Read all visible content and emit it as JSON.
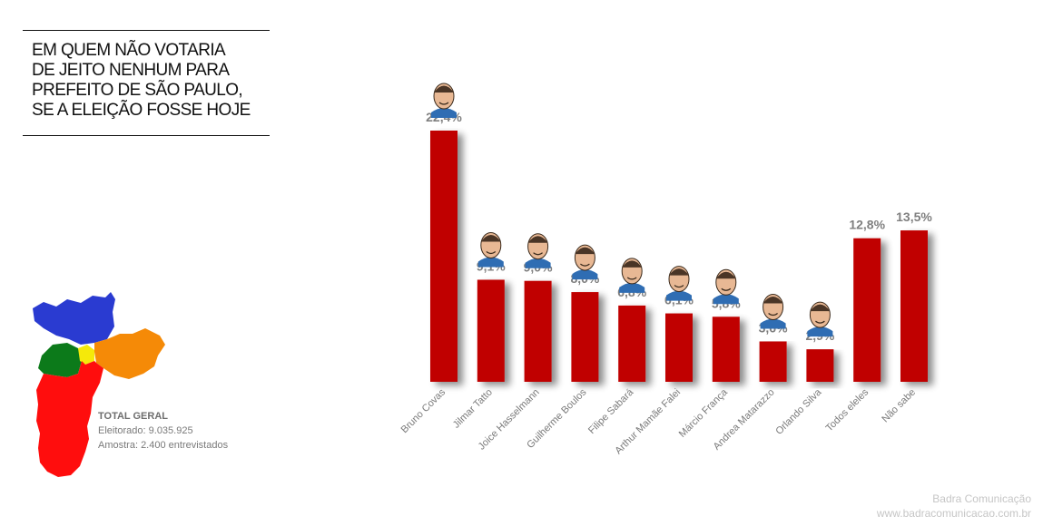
{
  "title": {
    "lines": [
      "EM QUEM NÃO VOTARIA",
      "DE JEITO NENHUM PARA",
      "PREFEITO DE SÃO PAULO,",
      "SE A ELEIÇÃO FOSSE HOJE"
    ]
  },
  "totals": {
    "heading": "TOTAL GERAL",
    "eleitorado": "Eleitorado: 9.035.925",
    "amostra": "Amostra: 2.400 entrevistados"
  },
  "map": {
    "region_colors": [
      "#2a3bd1",
      "#0c7a1a",
      "#f5e90a",
      "#f58a07",
      "#ff0d0d"
    ]
  },
  "chart_data": {
    "type": "bar",
    "categories": [
      "Bruno Covas",
      "Jilmar Tatto",
      "Joice Hasselmann",
      "Guilherme Boulos",
      "Filipe Sabará",
      "Arthur Mamãe Falei",
      "Márcio França",
      "Andrea Matarazzo",
      "Orlando Silva",
      "Todos eleles",
      "Não sabe"
    ],
    "values": [
      22.4,
      9.1,
      9.0,
      8.0,
      6.8,
      6.1,
      5.8,
      3.6,
      2.9,
      12.8,
      13.5
    ],
    "labels": [
      "22,4%",
      "9,1%",
      "9,0%",
      "8,0%",
      "6,8%",
      "6,1%",
      "5,8%",
      "3,6%",
      "2,9%",
      "12,8%",
      "13,5%"
    ],
    "portraits": [
      true,
      true,
      true,
      true,
      true,
      true,
      true,
      true,
      true,
      false,
      false
    ],
    "bar_color": "#c00000",
    "label_color": "#7f7f7f",
    "ylim": [
      0,
      22.4
    ],
    "grid": false,
    "legend": "none",
    "title": "",
    "xlabel": "",
    "ylabel": ""
  },
  "credit": {
    "name": "Badra Comunicação",
    "url": "www.badracomunicacao.com.br"
  }
}
